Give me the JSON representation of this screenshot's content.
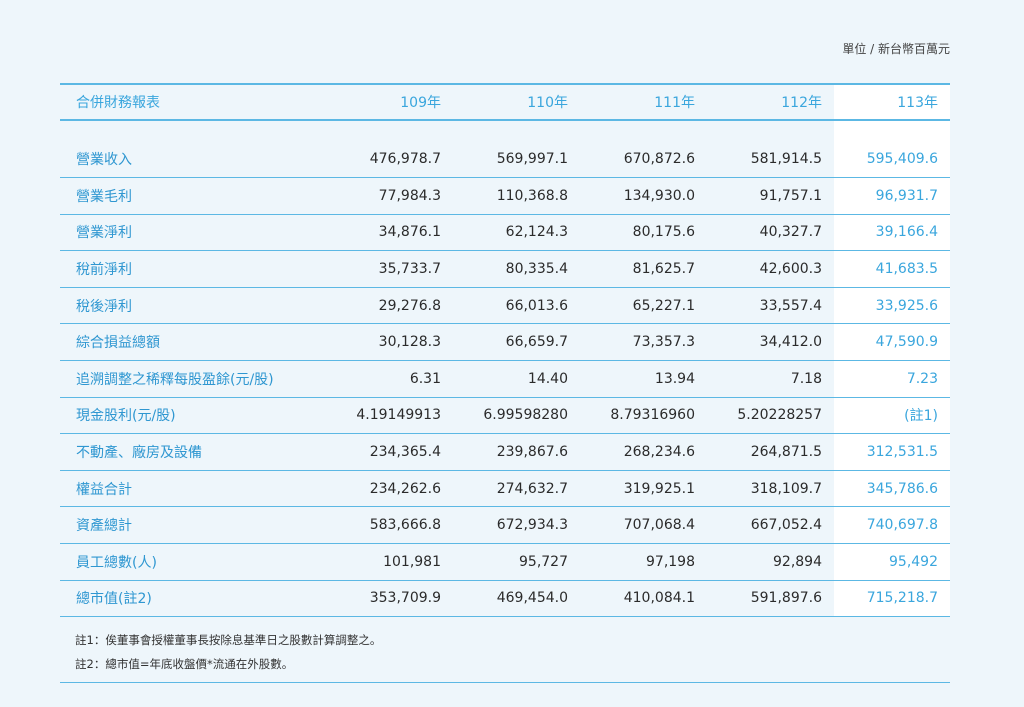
{
  "unit_label": "單位 / 新台幣百萬元",
  "table": {
    "header": [
      "合併財務報表",
      "109年",
      "110年",
      "111年",
      "112年",
      "113年"
    ],
    "rows": [
      {
        "label": "營業收入",
        "values": [
          "476,978.7",
          "569,997.1",
          "670,872.6",
          "581,914.5",
          "595,409.6"
        ]
      },
      {
        "label": "營業毛利",
        "values": [
          "77,984.3",
          "110,368.8",
          "134,930.0",
          "91,757.1",
          "96,931.7"
        ]
      },
      {
        "label": "營業淨利",
        "values": [
          "34,876.1",
          "62,124.3",
          "80,175.6",
          "40,327.7",
          "39,166.4"
        ]
      },
      {
        "label": "稅前淨利",
        "values": [
          "35,733.7",
          "80,335.4",
          "81,625.7",
          "42,600.3",
          "41,683.5"
        ]
      },
      {
        "label": "稅後淨利",
        "values": [
          "29,276.8",
          "66,013.6",
          "65,227.1",
          "33,557.4",
          "33,925.6"
        ]
      },
      {
        "label": "綜合損益總額",
        "values": [
          "30,128.3",
          "66,659.7",
          "73,357.3",
          "34,412.0",
          "47,590.9"
        ]
      },
      {
        "label": "追溯調整之稀釋每股盈餘(元/股)",
        "values": [
          "6.31",
          "14.40",
          "13.94",
          "7.18",
          "7.23"
        ]
      },
      {
        "label": "現金股利(元/股)",
        "values": [
          "4.19149913",
          "6.99598280",
          "8.79316960",
          "5.20228257",
          "(註1)"
        ]
      },
      {
        "label": "不動產、廠房及設備",
        "values": [
          "234,365.4",
          "239,867.6",
          "268,234.6",
          "264,871.5",
          "312,531.5"
        ]
      },
      {
        "label": "權益合計",
        "values": [
          "234,262.6",
          "274,632.7",
          "319,925.1",
          "318,109.7",
          "345,786.6"
        ]
      },
      {
        "label": "資產總計",
        "values": [
          "583,666.8",
          "672,934.3",
          "707,068.4",
          "667,052.4",
          "740,697.8"
        ]
      },
      {
        "label": "員工總數(人)",
        "values": [
          "101,981",
          "95,727",
          "97,198",
          "92,894",
          "95,492"
        ]
      },
      {
        "label": "總市值(註2)",
        "values": [
          "353,709.9",
          "469,454.0",
          "410,084.1",
          "591,897.6",
          "715,218.7"
        ]
      }
    ]
  },
  "notes": [
    "註1：俟董事會授權董事長按除息基準日之股數計算調整之。",
    "註2：總市值=年底收盤價*流通在外股數。"
  ]
}
